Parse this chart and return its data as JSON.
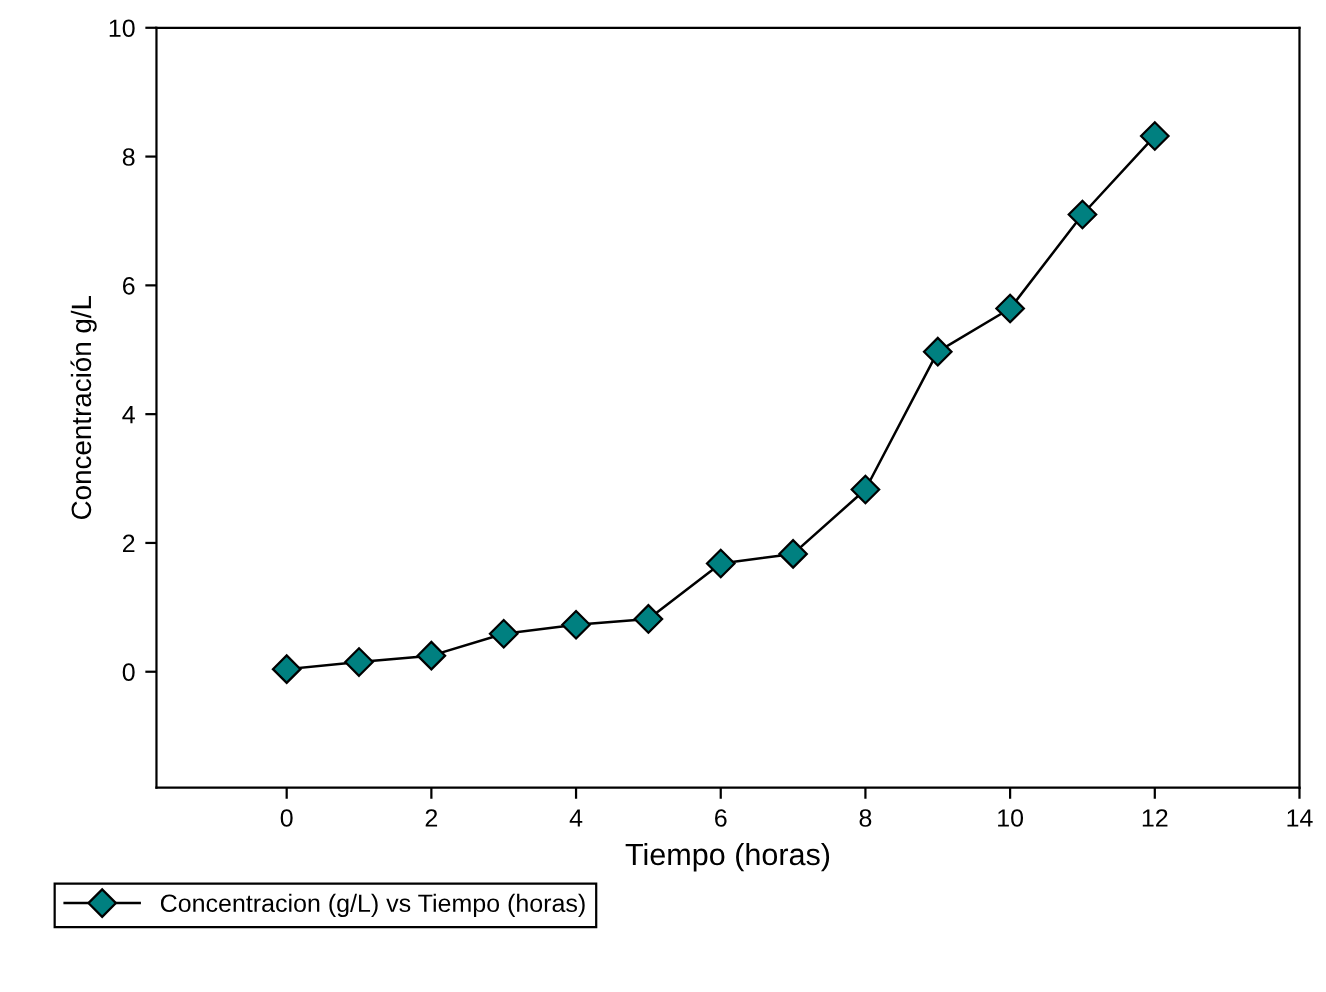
{
  "chart_data": {
    "type": "line",
    "xlabel": "Tiempo (horas)",
    "ylabel": "Concentración g/L",
    "x": [
      0,
      1,
      2,
      3,
      4,
      5,
      6,
      7,
      8,
      9,
      10,
      11,
      12
    ],
    "series": [
      {
        "name": "Concentracion (g/L) vs Tiempo (horas)",
        "color": "#008080",
        "values": [
          0.04,
          0.15,
          0.25,
          0.59,
          0.73,
          0.82,
          1.68,
          1.83,
          2.83,
          4.97,
          5.64,
          7.1,
          8.32
        ]
      }
    ],
    "xlim": [
      -1.8,
      14
    ],
    "xticks": [
      0,
      2,
      4,
      6,
      8,
      10,
      12,
      14
    ],
    "ylim": [
      -1.8,
      10
    ],
    "yticks": [
      0,
      2,
      4,
      6,
      8,
      10
    ],
    "marker": "diamond",
    "line_style": "solid",
    "grid": false,
    "legend": "bottom left"
  }
}
